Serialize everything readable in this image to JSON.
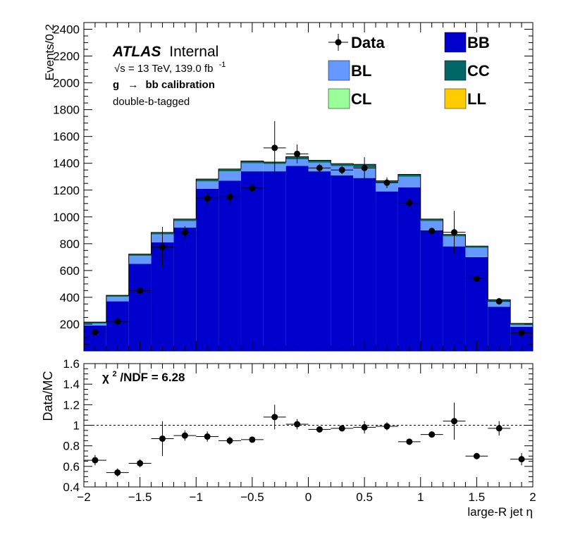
{
  "chart_data": [
    {
      "type": "bar",
      "stacked": true,
      "ylabel": "Events/0.2",
      "ylim": [
        0,
        2450
      ],
      "xlim": [
        -2,
        2
      ],
      "bin_edges": [
        -2.0,
        -1.8,
        -1.6,
        -1.4,
        -1.2,
        -1.0,
        -0.8,
        -0.6,
        -0.4,
        -0.2,
        0.0,
        0.2,
        0.4,
        0.6,
        0.8,
        1.0,
        1.2,
        1.4,
        1.6,
        1.8,
        2.0
      ],
      "yticks": [
        200,
        400,
        600,
        800,
        1000,
        1200,
        1400,
        1600,
        1800,
        2000,
        2200,
        2400
      ],
      "series": [
        {
          "name": "BB",
          "color": "#0000cc",
          "values": [
            190,
            370,
            650,
            810,
            920,
            1210,
            1270,
            1340,
            1340,
            1380,
            1340,
            1310,
            1290,
            1190,
            1220,
            900,
            780,
            700,
            330,
            180
          ]
        },
        {
          "name": "BL",
          "color": "#6699ff",
          "values": [
            15,
            35,
            60,
            60,
            50,
            55,
            70,
            60,
            55,
            50,
            65,
            70,
            80,
            65,
            80,
            70,
            75,
            70,
            40,
            15
          ]
        },
        {
          "name": "CC",
          "color": "#006666",
          "values": [
            8,
            8,
            10,
            12,
            12,
            15,
            15,
            15,
            12,
            18,
            15,
            15,
            20,
            12,
            15,
            12,
            12,
            10,
            10,
            8
          ]
        },
        {
          "name": "CL",
          "color": "#99ff99",
          "values": [
            1,
            1,
            1,
            1,
            1,
            1,
            1,
            1,
            1,
            1,
            1,
            1,
            1,
            1,
            1,
            1,
            1,
            1,
            1,
            1
          ]
        },
        {
          "name": "LL",
          "color": "#ffcc00",
          "values": [
            1,
            1,
            1,
            1,
            1,
            1,
            1,
            1,
            1,
            1,
            1,
            1,
            1,
            1,
            1,
            1,
            1,
            1,
            1,
            1
          ]
        }
      ],
      "data": {
        "name": "Data",
        "x": [
          -1.9,
          -1.7,
          -1.5,
          -1.3,
          -1.1,
          -0.9,
          -0.7,
          -0.5,
          -0.3,
          -0.1,
          0.1,
          0.3,
          0.5,
          0.7,
          0.9,
          1.1,
          1.3,
          1.5,
          1.7,
          1.9
        ],
        "y": [
          140,
          220,
          450,
          775,
          885,
          1140,
          1150,
          1215,
          1515,
          1470,
          1365,
          1350,
          1365,
          1255,
          1105,
          895,
          885,
          540,
          370,
          135
        ],
        "yerr": [
          15,
          20,
          25,
          150,
          45,
          50,
          50,
          30,
          200,
          70,
          30,
          30,
          80,
          40,
          30,
          20,
          160,
          20,
          25,
          15
        ]
      },
      "annotations": {
        "experiment": "ATLAS",
        "label": "Internal",
        "energy_line_sqrt": "√s",
        "energy_line": " = 13 TeV, 139.0 fb",
        "energy_sup": "-1",
        "process_g": "g",
        "process_arrow": "→",
        "process_rest": "bb calibration",
        "selection": "double-b-tagged"
      }
    },
    {
      "type": "scatter",
      "ylabel": "Data/MC",
      "xlabel": "large-R jet η",
      "ylim": [
        0.4,
        1.6
      ],
      "xlim": [
        -2,
        2
      ],
      "yticks": [
        0.4,
        0.6,
        0.8,
        1,
        1.2,
        1.4,
        1.6
      ],
      "ytick_labels": [
        "0.4",
        "0.6",
        "0.8",
        "1",
        "1.2",
        "1.4",
        "1.6"
      ],
      "xticks": [
        -2,
        -1.5,
        -1,
        -0.5,
        0,
        0.5,
        1,
        1.5,
        2
      ],
      "xtick_labels": [
        "−2",
        "−1.5",
        "−1",
        "−0.5",
        "0",
        "0.5",
        "1",
        "1.5",
        "2"
      ],
      "reference_line": 1,
      "x": [
        -1.9,
        -1.7,
        -1.5,
        -1.3,
        -1.1,
        -0.9,
        -0.7,
        -0.5,
        -0.3,
        -0.1,
        0.1,
        0.3,
        0.5,
        0.7,
        0.9,
        1.1,
        1.3,
        1.5,
        1.7,
        1.9
      ],
      "y": [
        0.66,
        0.54,
        0.63,
        0.87,
        0.9,
        0.89,
        0.85,
        0.86,
        1.08,
        1.01,
        0.96,
        0.97,
        0.98,
        0.99,
        0.84,
        0.91,
        1.04,
        0.7,
        0.97,
        0.67
      ],
      "yerr": [
        0.05,
        0.04,
        0.04,
        0.17,
        0.05,
        0.05,
        0.04,
        0.03,
        0.12,
        0.05,
        0.03,
        0.03,
        0.06,
        0.04,
        0.03,
        0.03,
        0.18,
        0.03,
        0.07,
        0.06
      ],
      "chi2_label": "χ",
      "chi2_sup": "2",
      "chi2_text": "/NDF = 6.28"
    }
  ]
}
